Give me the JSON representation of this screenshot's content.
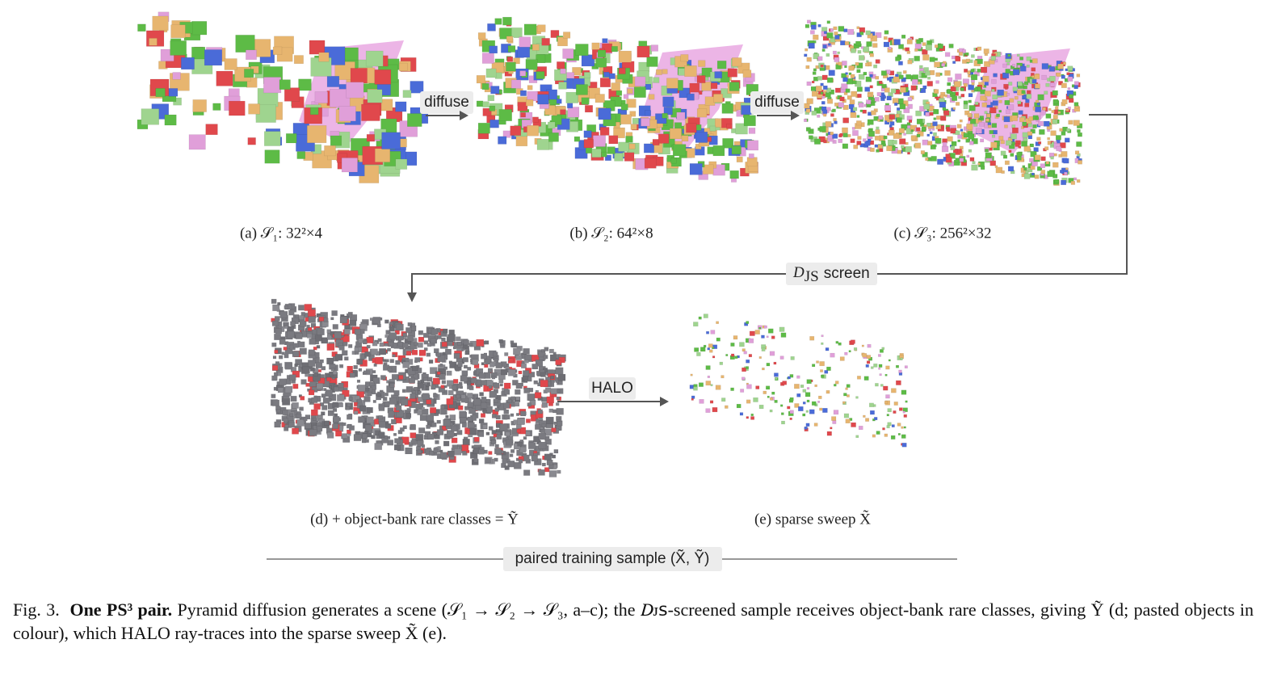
{
  "figure": {
    "steps": [
      "diffuse",
      "diffuse"
    ],
    "panels": {
      "a": "(a) 𝒮₁: 32²×4",
      "b": "(b) 𝒮₂: 64²×8",
      "c": "(c) 𝒮₃: 256²×32",
      "d": "(d) + object-bank rare classes = Ỹ",
      "e": "(e) sparse sweep X̃"
    },
    "screen": {
      "symbol": "D",
      "sub": "JS",
      "text": "screen"
    },
    "halo": "HALO",
    "pair": "paired training sample (X̃, Ỹ)"
  },
  "caption": {
    "label": "Fig. 3.",
    "title": "One PS³ pair.",
    "body": "Pyramid diffusion generates a scene (𝒮₁ → 𝒮₂ → 𝒮₃, a–c); the 𝐷ᴊꜱ-screened sample receives object-bank rare classes, giving Ỹ (d; pasted objects in colour), which HALO ray-traces into the sparse sweep X̃ (e)."
  }
}
